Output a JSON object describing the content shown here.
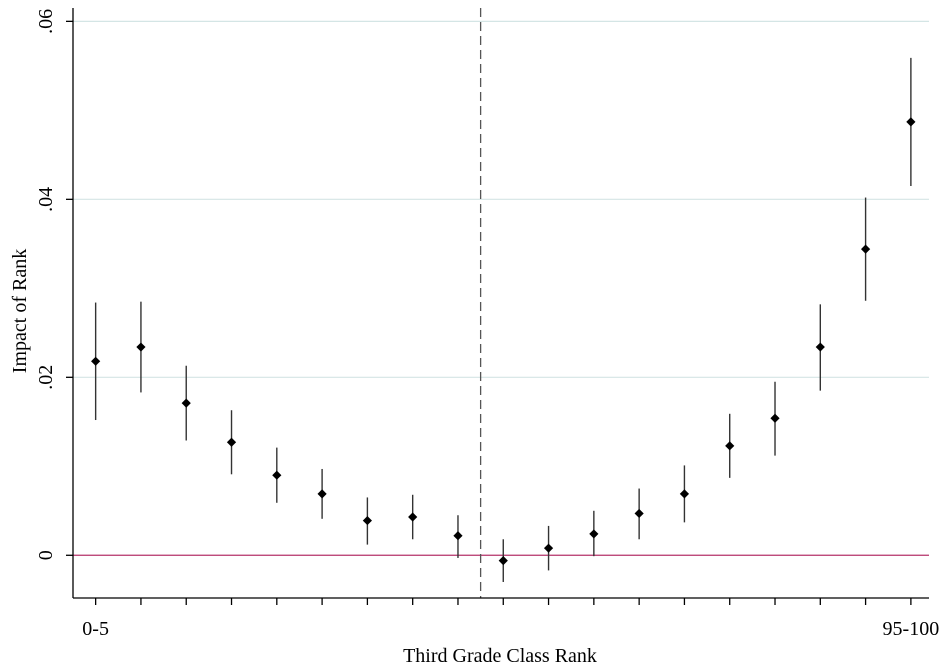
{
  "chart_data": {
    "type": "scatter",
    "xlabel": "Third Grade Class Rank",
    "ylabel": "Impact of Rank",
    "x_tick_labels": [
      {
        "index": 0,
        "label": "0-5"
      },
      {
        "index": 18,
        "label": "95-100"
      }
    ],
    "y_ticks": [
      {
        "value": 0,
        "label": "0"
      },
      {
        "value": 0.02,
        "label": ".02"
      },
      {
        "value": 0.04,
        "label": ".04"
      },
      {
        "value": 0.06,
        "label": ".06"
      }
    ],
    "ylim": [
      -0.0048,
      0.0615
    ],
    "xlim": [
      -0.5,
      18.4
    ],
    "grid": true,
    "reference_vertical_line_between": [
      8,
      9
    ],
    "reference_horizontal_line": 0,
    "series": [
      {
        "x": [
          0,
          1,
          2,
          3,
          4,
          5,
          6,
          7,
          8,
          9,
          10,
          11,
          12,
          13,
          14,
          15,
          16,
          17,
          18
        ],
        "values": [
          0.0218,
          0.0234,
          0.0171,
          0.0127,
          0.009,
          0.0069,
          0.0039,
          0.0043,
          0.0022,
          -0.0006,
          0.0008,
          0.0024,
          0.0047,
          0.0069,
          0.0123,
          0.0154,
          0.0234,
          0.0344,
          0.0487
        ],
        "ci_low": [
          0.0152,
          0.0183,
          0.0129,
          0.0091,
          0.0059,
          0.0041,
          0.0012,
          0.0018,
          -0.0003,
          -0.003,
          -0.0017,
          -0.0001,
          0.0018,
          0.0037,
          0.0087,
          0.0112,
          0.0185,
          0.0286,
          0.0415
        ],
        "ci_high": [
          0.0284,
          0.0285,
          0.0213,
          0.0163,
          0.0121,
          0.0097,
          0.0065,
          0.0068,
          0.0045,
          0.0018,
          0.0033,
          0.005,
          0.0075,
          0.0101,
          0.0159,
          0.0195,
          0.0282,
          0.0402,
          0.0559
        ]
      }
    ],
    "colors": {
      "marker": "#000000",
      "ci_line": "#333333",
      "zero_line": "#b5336a",
      "grid": "#d4e5e5",
      "axis": "#000000",
      "reference_line": "#555555"
    }
  }
}
